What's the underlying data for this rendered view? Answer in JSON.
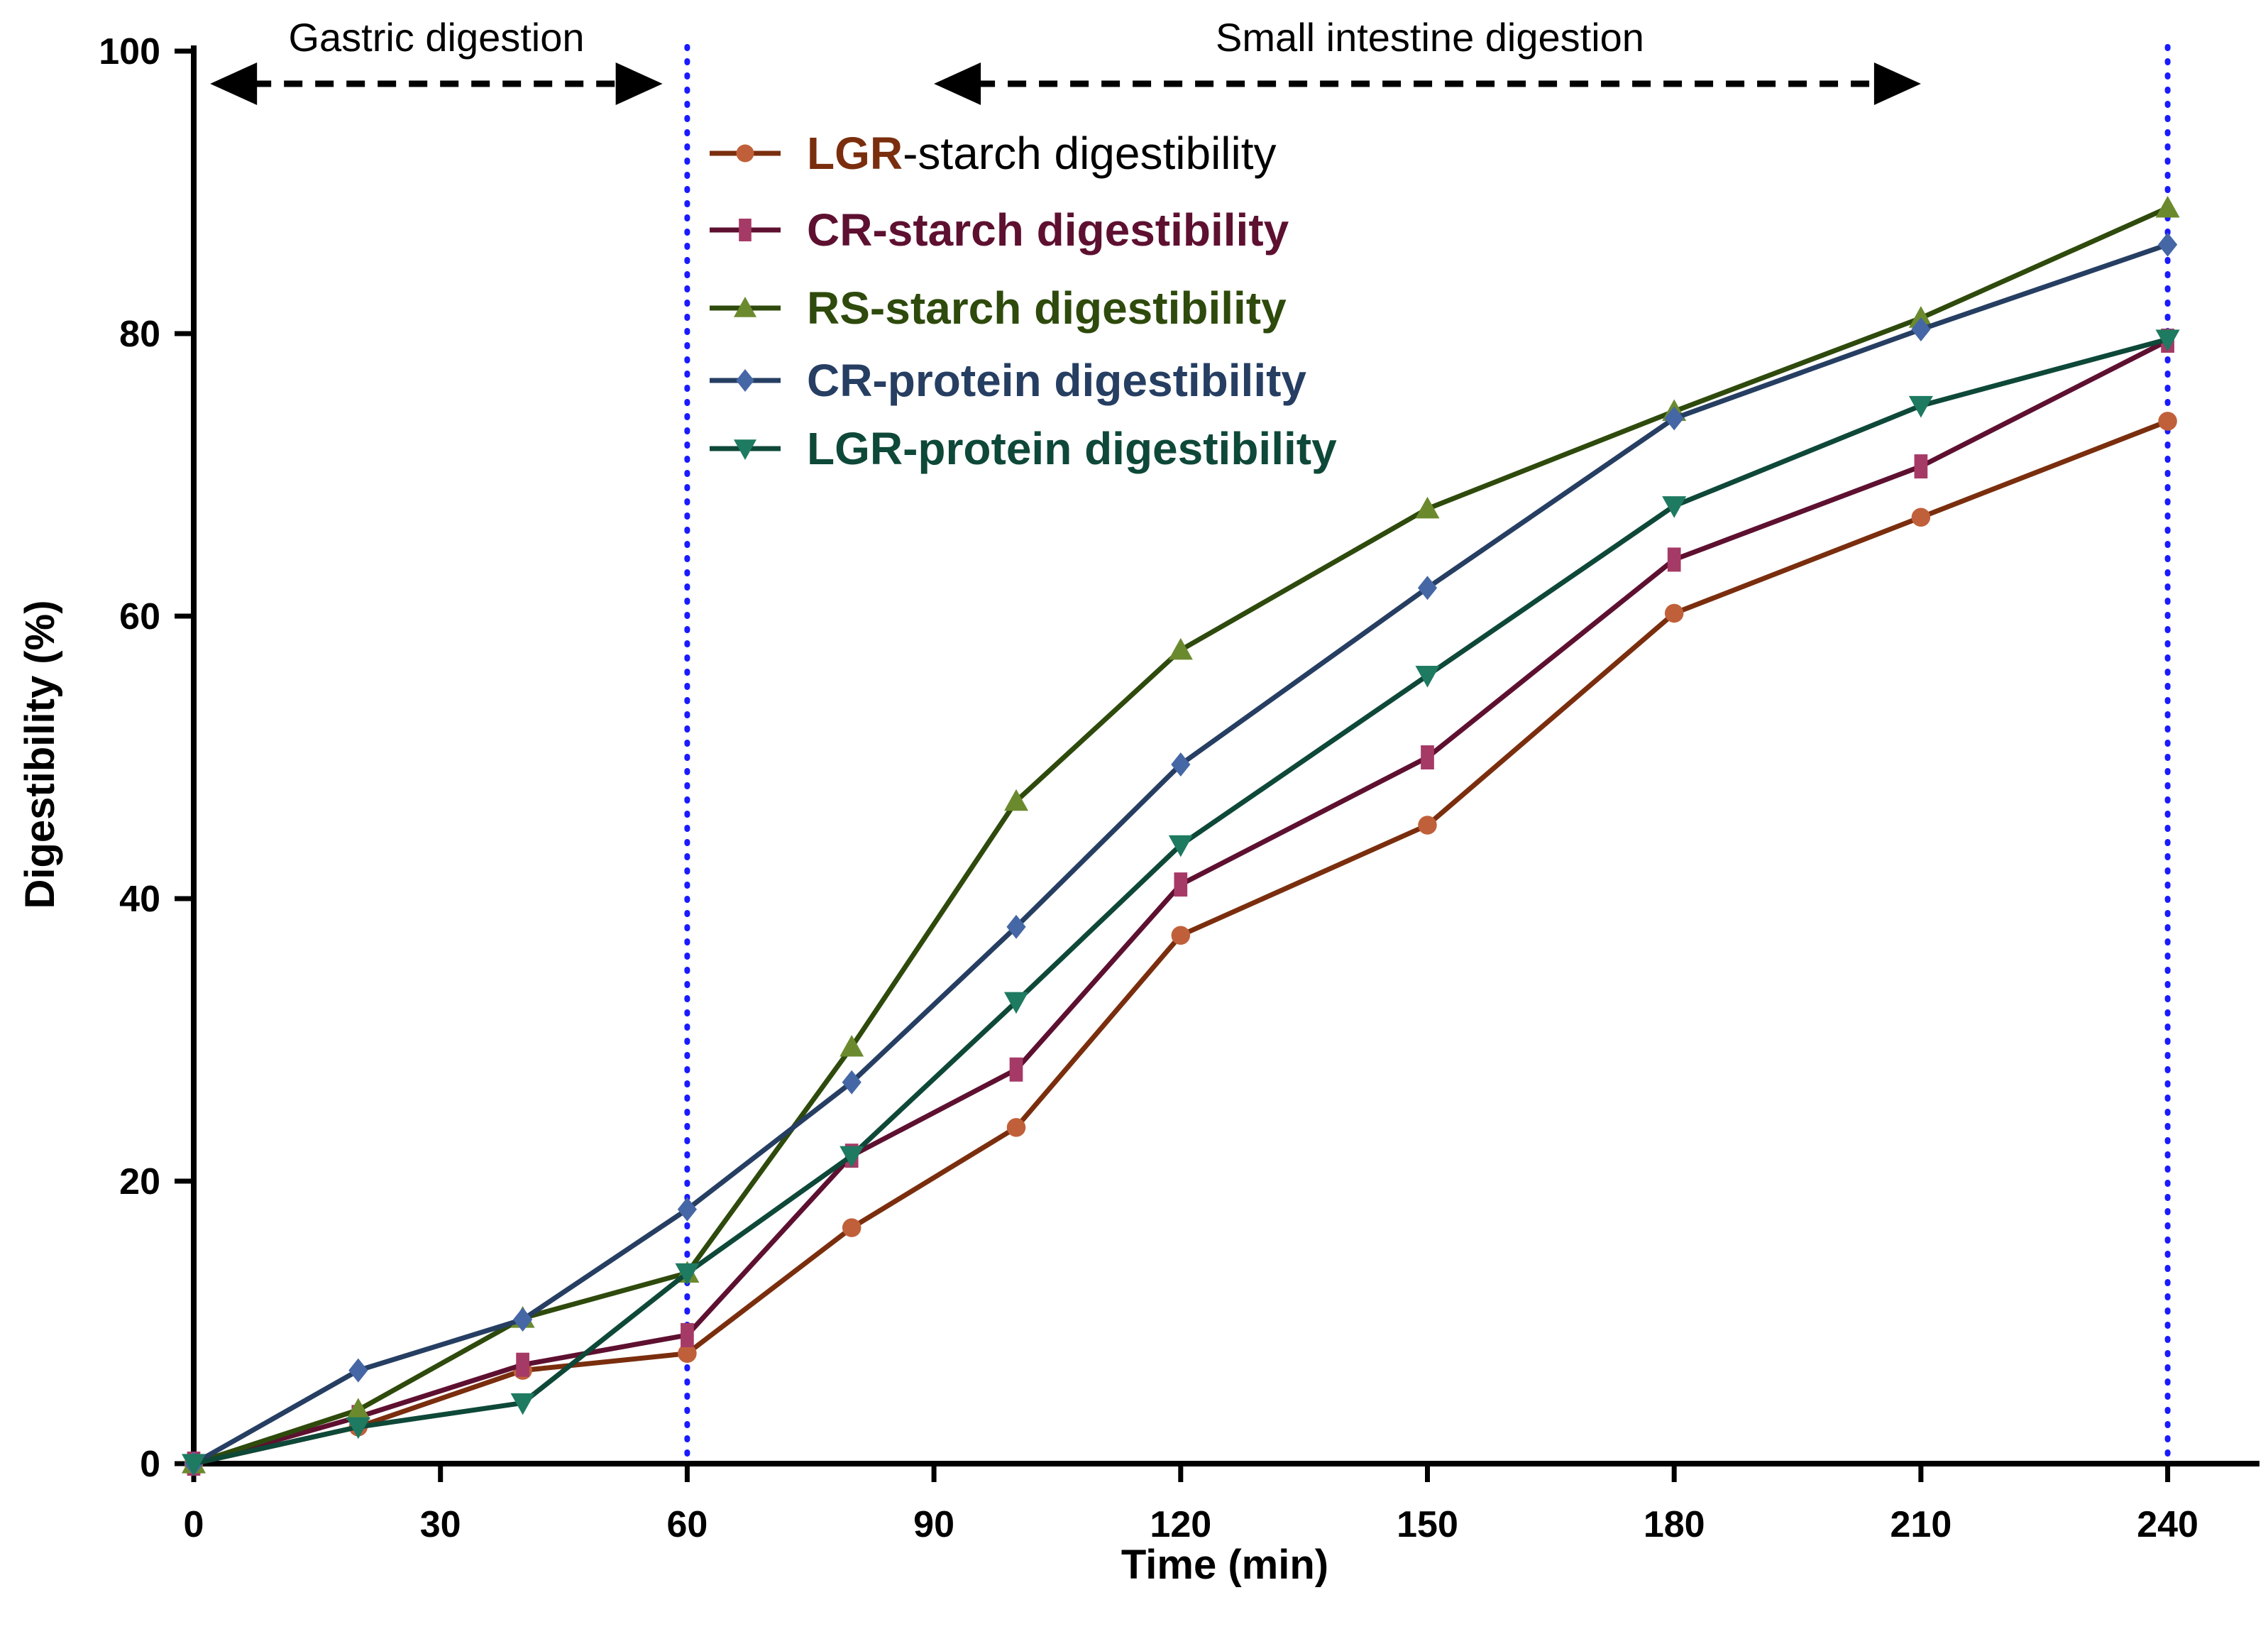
{
  "chart_data": {
    "type": "line",
    "title": "",
    "xlabel": "Time (min)",
    "ylabel": "Digestibility (%)",
    "xlim": [
      0,
      250
    ],
    "ylim": [
      0,
      100
    ],
    "xticks": [
      0,
      30,
      60,
      90,
      120,
      150,
      180,
      210,
      240
    ],
    "yticks": [
      0,
      20,
      40,
      60,
      80,
      100
    ],
    "grid": false,
    "legend_position": "top-center",
    "vlines": [
      60,
      240
    ],
    "phases": [
      {
        "label": "Gastric digestion",
        "from": 2,
        "to": 57
      },
      {
        "label": "Small intestine digestion",
        "from": 90,
        "to": 210
      }
    ],
    "series": [
      {
        "name": "LGR-starch digestibility",
        "label_bold": "LGR",
        "label_rest": "-starch digestibility",
        "color": "#7a2e0e",
        "marker_color": "#c0603a",
        "marker": "circle",
        "x": [
          0,
          20,
          40,
          60,
          80,
          100,
          120,
          150,
          180,
          210,
          240
        ],
        "y": [
          0,
          2.6,
          6.6,
          7.8,
          16.7,
          23.8,
          37.4,
          45.2,
          60.2,
          67.0,
          73.8
        ]
      },
      {
        "name": "CR-starch digestibility",
        "label_bold": "CR-starch digestibility",
        "label_rest": "",
        "color": "#5e1030",
        "marker_color": "#a63a66",
        "marker": "square",
        "x": [
          0,
          20,
          40,
          60,
          80,
          100,
          120,
          150,
          180,
          210,
          240
        ],
        "y": [
          0,
          3.3,
          7.0,
          9.1,
          21.8,
          27.9,
          41.0,
          50.0,
          64.0,
          70.6,
          79.5
        ]
      },
      {
        "name": "RS-starch digestibility",
        "label_bold": "RS-starch digestibility",
        "label_rest": "",
        "color": "#2e4a0c",
        "marker_color": "#6b8a2e",
        "marker": "triangle-up",
        "x": [
          0,
          20,
          40,
          60,
          80,
          100,
          120,
          150,
          180,
          210,
          240
        ],
        "y": [
          0,
          3.8,
          10.3,
          13.5,
          29.5,
          46.9,
          57.6,
          67.6,
          74.5,
          81.1,
          88.9
        ]
      },
      {
        "name": "CR-protein digestibility",
        "label_bold": "CR-protein digestibility",
        "label_rest": "",
        "color": "#263e62",
        "marker_color": "#4667a6",
        "marker": "diamond",
        "x": [
          0,
          20,
          40,
          60,
          80,
          100,
          120,
          150,
          180,
          210,
          240
        ],
        "y": [
          0,
          6.6,
          10.2,
          18.0,
          27.0,
          38.0,
          49.5,
          62.0,
          74.0,
          80.3,
          86.3
        ]
      },
      {
        "name": "LGR-protein digestibility",
        "label_bold": "LGR-protein digestibility",
        "label_rest": "",
        "color": "#0e4838",
        "marker_color": "#1e7a60",
        "marker": "triangle-down",
        "x": [
          0,
          20,
          40,
          60,
          80,
          100,
          120,
          150,
          180,
          210,
          240
        ],
        "y": [
          0,
          2.6,
          4.3,
          13.5,
          21.8,
          32.7,
          43.8,
          55.8,
          67.8,
          74.9,
          79.6
        ]
      }
    ]
  }
}
